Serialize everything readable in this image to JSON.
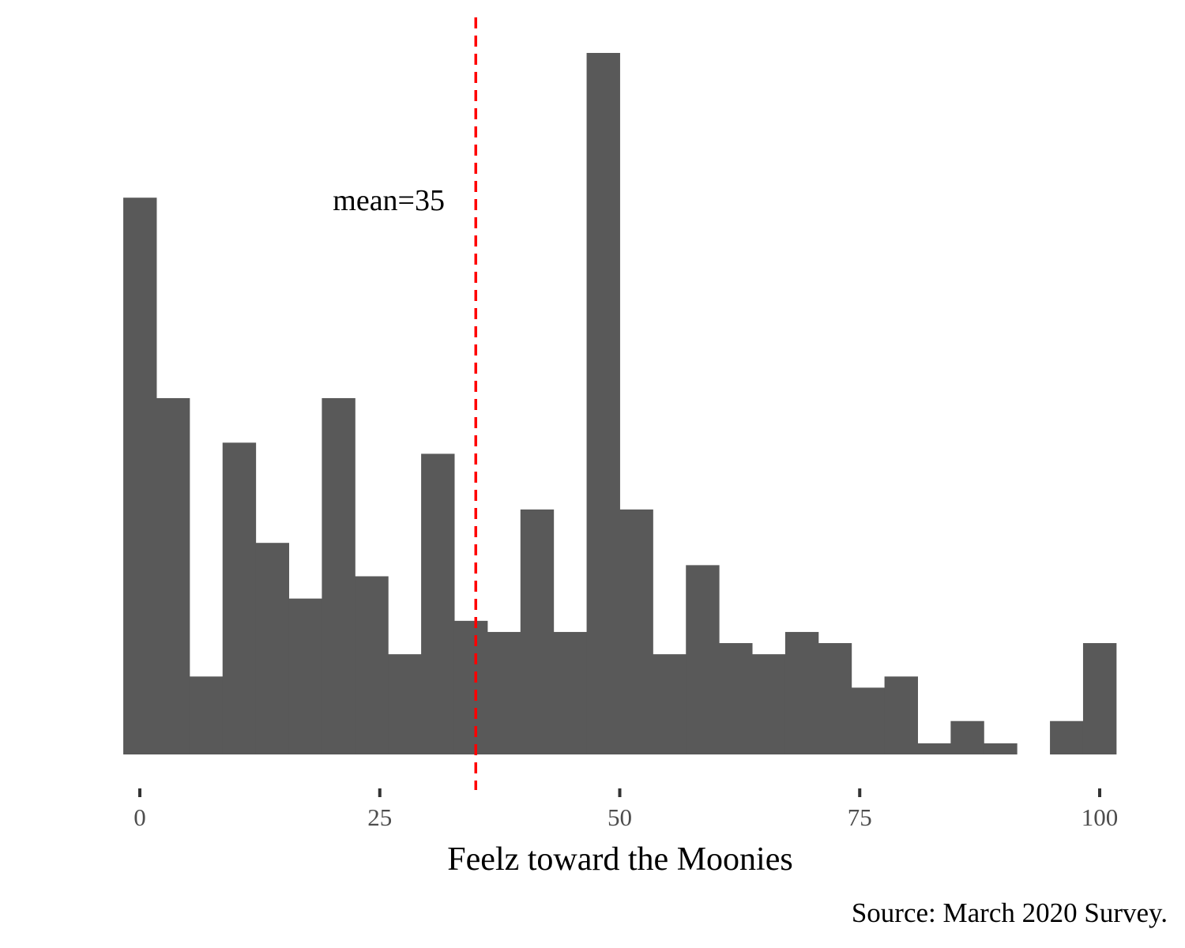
{
  "chart_data": {
    "type": "bar",
    "subtype": "histogram",
    "xlabel": "Feelz toward the Moonies",
    "ylabel": "",
    "caption": "Source: March 2020 Survey.",
    "bin_width": 3.448,
    "bin_centers_start": 0,
    "counts": [
      50,
      32,
      7,
      28,
      19,
      14,
      32,
      16,
      9,
      27,
      12,
      11,
      22,
      11,
      63,
      22,
      9,
      17,
      10,
      9,
      11,
      10,
      6,
      7,
      1,
      3,
      1,
      0,
      3,
      10
    ],
    "xlim": [
      -1.724,
      101.724
    ],
    "ylim": [
      0,
      63
    ],
    "x_ticks": [
      0,
      25,
      50,
      75,
      100
    ],
    "x_tick_labels": [
      "0",
      "25",
      "50",
      "75",
      "100"
    ],
    "bar_color": "#595959",
    "mean_line": {
      "value": 35,
      "label": "mean=35",
      "color": "#ff0000",
      "style": "dashed"
    },
    "grid": false,
    "legend": "none"
  }
}
